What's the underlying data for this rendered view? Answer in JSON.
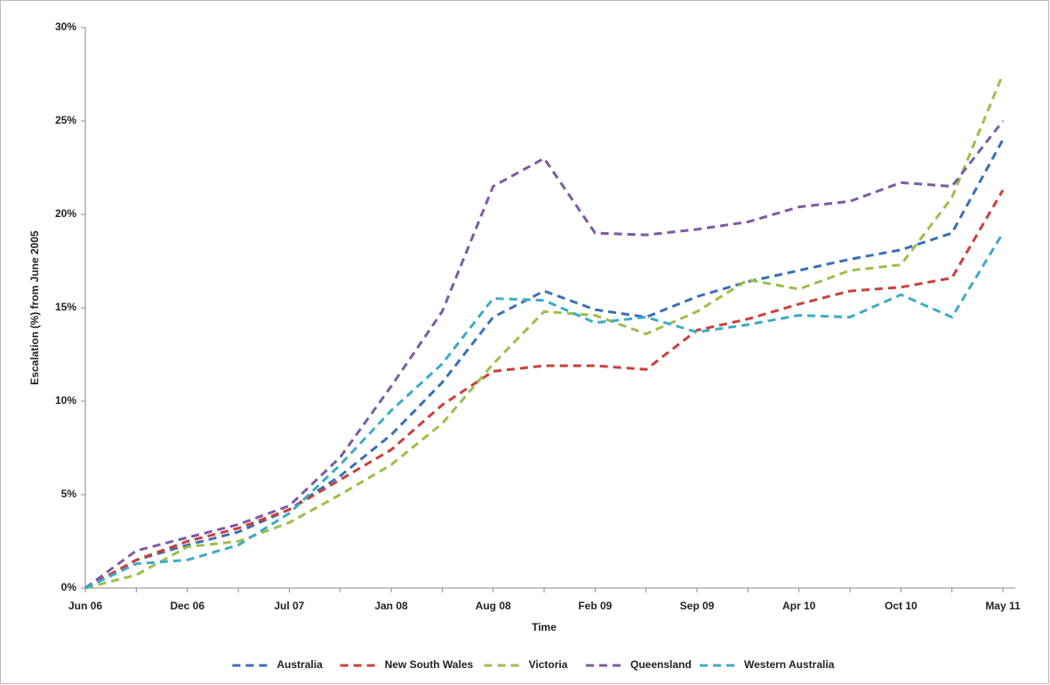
{
  "chart_data": {
    "type": "line",
    "x_label": "Time",
    "y_label": "Escalation (%) from June 2005",
    "categories": [
      "Jun 06",
      null,
      "Dec 06",
      null,
      "Jul 07",
      null,
      "Jan 08",
      null,
      "Aug 08",
      null,
      "Feb 09",
      null,
      "Sep 09",
      null,
      "Apr 10",
      null,
      "Oct 10",
      null,
      "May 11"
    ],
    "ylim": [
      0,
      30
    ],
    "yticks": [
      {
        "value": 0,
        "label": "0%"
      },
      {
        "value": 5,
        "label": "5%"
      },
      {
        "value": 10,
        "label": "10%"
      },
      {
        "value": 15,
        "label": "15%"
      },
      {
        "value": 20,
        "label": "20%"
      },
      {
        "value": 25,
        "label": "25%"
      },
      {
        "value": 30,
        "label": "30%"
      }
    ],
    "grid": false,
    "legend": "bottom",
    "dashed": true,
    "series": [
      {
        "name": "Australia",
        "color": "#3a6fb7",
        "values": [
          0,
          1.5,
          2.3,
          3.0,
          4.2,
          6.0,
          8.2,
          11.0,
          14.5,
          15.9,
          14.9,
          14.5,
          15.6,
          16.4,
          17.0,
          17.6,
          18.1,
          19.0,
          24.0
        ]
      },
      {
        "name": "New South Wales",
        "color": "#c9403a",
        "values": [
          0,
          1.5,
          2.5,
          3.2,
          4.2,
          5.8,
          7.4,
          9.8,
          11.6,
          11.9,
          11.9,
          11.7,
          13.8,
          14.4,
          15.2,
          15.9,
          16.1,
          16.6,
          21.3
        ]
      },
      {
        "name": "Victoria",
        "color": "#9abf4b",
        "values": [
          0,
          0.7,
          2.2,
          2.5,
          3.5,
          5.0,
          6.6,
          8.8,
          12.0,
          14.8,
          14.6,
          13.6,
          14.8,
          16.5,
          16.0,
          17.0,
          17.3,
          20.9,
          27.5
        ]
      },
      {
        "name": "Queensland",
        "color": "#7d5aa6",
        "values": [
          0,
          2.0,
          2.7,
          3.4,
          4.4,
          7.0,
          10.8,
          14.8,
          21.5,
          23.0,
          19.0,
          18.9,
          19.2,
          19.6,
          20.4,
          20.7,
          21.7,
          21.5,
          25.0
        ]
      },
      {
        "name": "Western Australia",
        "color": "#3eaac9",
        "values": [
          0,
          1.3,
          1.5,
          2.3,
          4.0,
          6.6,
          9.5,
          12.0,
          15.5,
          15.4,
          14.2,
          14.5,
          13.7,
          14.1,
          14.6,
          14.5,
          15.7,
          14.5,
          19.0
        ]
      }
    ]
  }
}
